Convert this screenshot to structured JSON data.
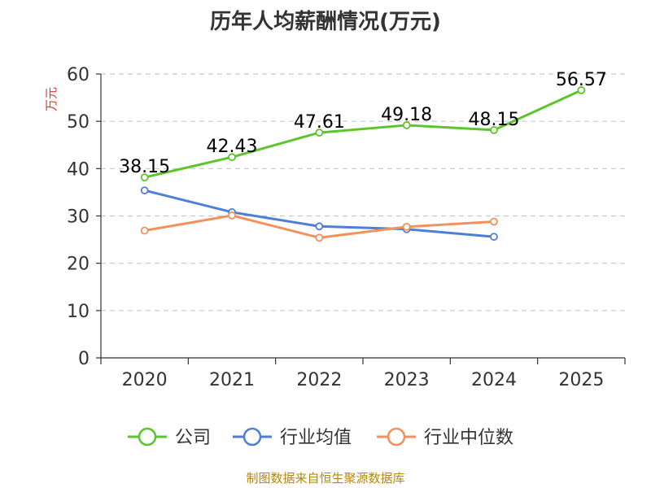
{
  "source_note": "制图数据来自恒生聚源数据库",
  "chart_data": {
    "type": "line",
    "title": "历年人均薪酬情况(万元)",
    "xlabel": "",
    "ylabel": "万元",
    "categories": [
      "2020",
      "2021",
      "2022",
      "2023",
      "2024",
      "2025"
    ],
    "ylim": [
      0,
      60
    ],
    "yticks": [
      0,
      10,
      20,
      30,
      40,
      50,
      60
    ],
    "grid": true,
    "legend_position": "bottom",
    "series": [
      {
        "name": "公司",
        "color": "#5cc52b",
        "values": [
          38.15,
          42.43,
          47.61,
          49.18,
          48.15,
          56.57
        ],
        "labels": [
          "38.15",
          "42.43",
          "47.61",
          "49.18",
          "48.15",
          "56.57"
        ]
      },
      {
        "name": "行业均值",
        "color": "#4e7fd8",
        "values": [
          35.4,
          30.8,
          27.8,
          27.2,
          25.6,
          null
        ]
      },
      {
        "name": "行业中位数",
        "color": "#f4915a",
        "values": [
          26.9,
          30.1,
          25.4,
          27.7,
          28.8,
          null
        ]
      }
    ]
  }
}
